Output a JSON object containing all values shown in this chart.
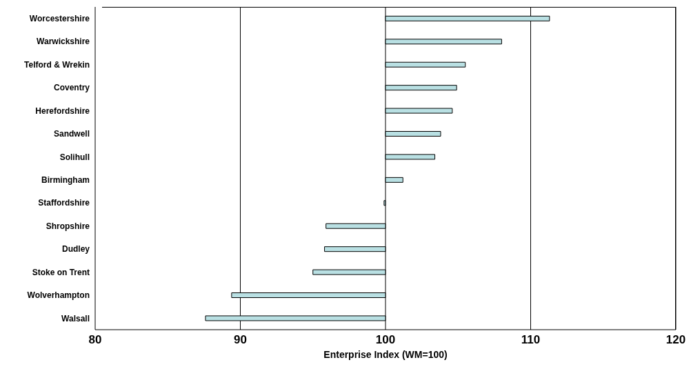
{
  "chart_data": {
    "type": "bar",
    "orientation": "horizontal",
    "xlabel": "Enterprise Index (WM=100)",
    "categories": [
      "Worcestershire",
      "Warwickshire",
      "Telford & Wrekin",
      "Coventry",
      "Herefordshire",
      "Sandwell",
      "Solihull",
      "Birmingham",
      "Staffordshire",
      "Shropshire",
      "Dudley",
      "Stoke on Trent",
      "Wolverhampton",
      "Walsall"
    ],
    "base": [
      100,
      100,
      100,
      100,
      100,
      100,
      100,
      100,
      100,
      100,
      100,
      100,
      100,
      100
    ],
    "values": [
      11.3,
      8.0,
      5.5,
      4.9,
      4.6,
      3.8,
      3.4,
      1.2,
      -0.1,
      -4.1,
      -4.2,
      -5.0,
      -10.6,
      -12.4
    ],
    "color": "#b9e0e3",
    "xlim": [
      80,
      120
    ],
    "xticks": [
      80,
      90,
      100,
      110,
      120
    ],
    "grid": "x"
  }
}
